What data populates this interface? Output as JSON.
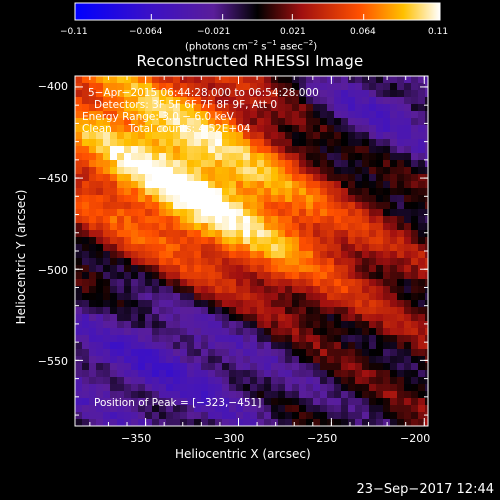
{
  "chart_data": {
    "type": "heatmap",
    "title": "Reconstructed RHESSI Image",
    "xlabel": "Heliocentric X (arcsec)",
    "ylabel": "Heliocentric Y (arcsec)",
    "xlim": [
      -388,
      -198
    ],
    "ylim": [
      -586,
      -394
    ],
    "xticks": [
      -350,
      -300,
      -250,
      -200
    ],
    "yticks": [
      -400,
      -450,
      -500,
      -550
    ],
    "xtick_labels": [
      "−350",
      "−300",
      "−250",
      "−200"
    ],
    "ytick_labels": [
      "−400",
      "−450",
      "−500",
      "−550"
    ],
    "colorbar": {
      "min": -0.11,
      "max": 0.11,
      "tick_labels": [
        "−0.11",
        "−0.064",
        "−0.021",
        "0.021",
        "0.064",
        "0.11"
      ],
      "units_text": "(photons cm",
      "units_exp1": "−2",
      "units_mid1": " s",
      "units_exp2": "−1",
      "units_mid2": " asec",
      "units_exp3": "−2",
      "units_end": ")"
    },
    "peak": {
      "x": -323,
      "y": -451,
      "value": 0.11
    },
    "colors": {
      "blue": "#0000ff",
      "purple": "#5a1e9a",
      "red": "#d81800",
      "yellow": "#ffe000",
      "white": "#ffffff"
    }
  },
  "annotations": {
    "time_range": "5−Apr−2015 06:44:28.000 to 06:54:28.000",
    "detectors": "Detectors: 3F 5F 6F 7F 8F 9F, Att 0",
    "energy": "Energy Range: 3.0 − 6.0 keV",
    "clean": "Clean     Total counts: 4.52E+04",
    "peak": "Position of Peak = [−323,−451]"
  },
  "footer": {
    "timestamp": "23−Sep−2017 12:44"
  }
}
